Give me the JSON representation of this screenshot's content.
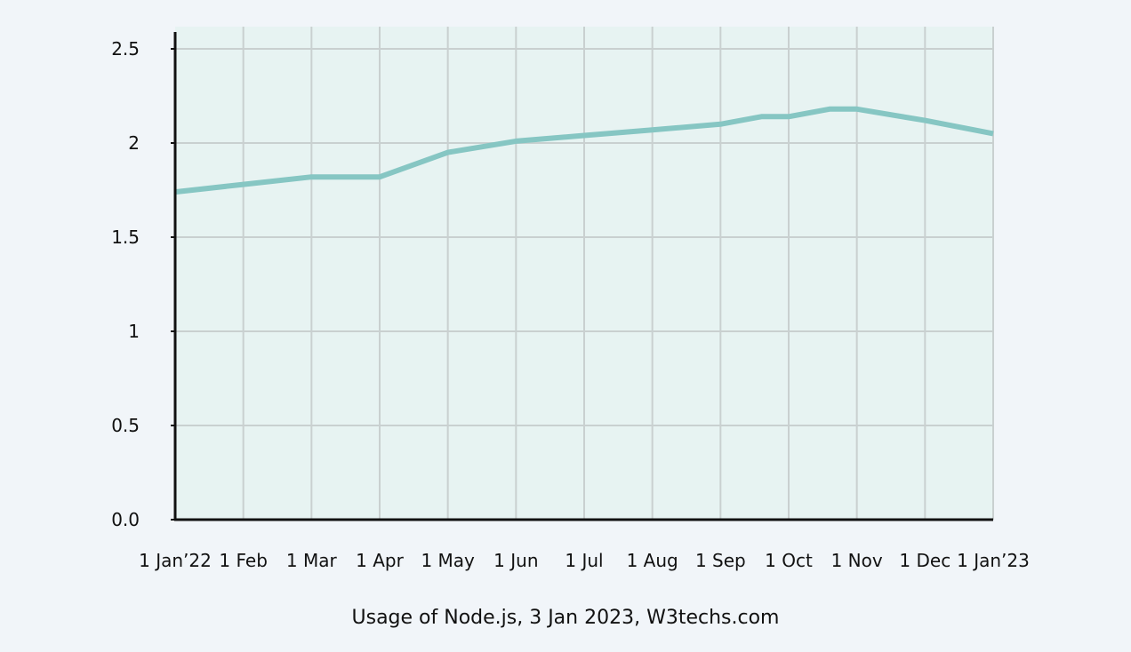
{
  "chart_data": {
    "type": "line",
    "caption": "Usage of Node.js, 3 Jan 2023, W3techs.com",
    "x_ticks": [
      "1 Jan’22",
      "1 Feb",
      "1 Mar",
      "1 Apr",
      "1 May",
      "1 Jun",
      "1 Jul",
      "1 Aug",
      "1 Sep",
      "1 Oct",
      "1 Nov",
      "1 Dec",
      "1 Jan’23"
    ],
    "y_ticks": [
      {
        "value": 0,
        "label": "0.0"
      },
      {
        "value": 0.5,
        "label": "0.5"
      },
      {
        "value": 1,
        "label": "1"
      },
      {
        "value": 1.5,
        "label": "1.5"
      },
      {
        "value": 2,
        "label": "2"
      },
      {
        "value": 2.5,
        "label": "2.5"
      }
    ],
    "ylim": [
      0,
      2.5
    ],
    "grid": true,
    "series": [
      {
        "color": "#86c6c3",
        "points": [
          {
            "x": 0,
            "y": 1.74
          },
          {
            "x": 1,
            "y": 1.78
          },
          {
            "x": 2,
            "y": 1.82
          },
          {
            "x": 3,
            "y": 1.82
          },
          {
            "x": 4,
            "y": 1.95
          },
          {
            "x": 5,
            "y": 2.01
          },
          {
            "x": 6,
            "y": 2.04
          },
          {
            "x": 7,
            "y": 2.07
          },
          {
            "x": 8,
            "y": 2.1
          },
          {
            "x": 8.6,
            "y": 2.14
          },
          {
            "x": 9,
            "y": 2.14
          },
          {
            "x": 9.6,
            "y": 2.18
          },
          {
            "x": 10,
            "y": 2.18
          },
          {
            "x": 11,
            "y": 2.12
          },
          {
            "x": 12,
            "y": 2.05
          }
        ]
      }
    ],
    "colors": {
      "plot_background": "#e7f3f2",
      "grid": "#c9d0d0",
      "axis": "#111111"
    }
  }
}
